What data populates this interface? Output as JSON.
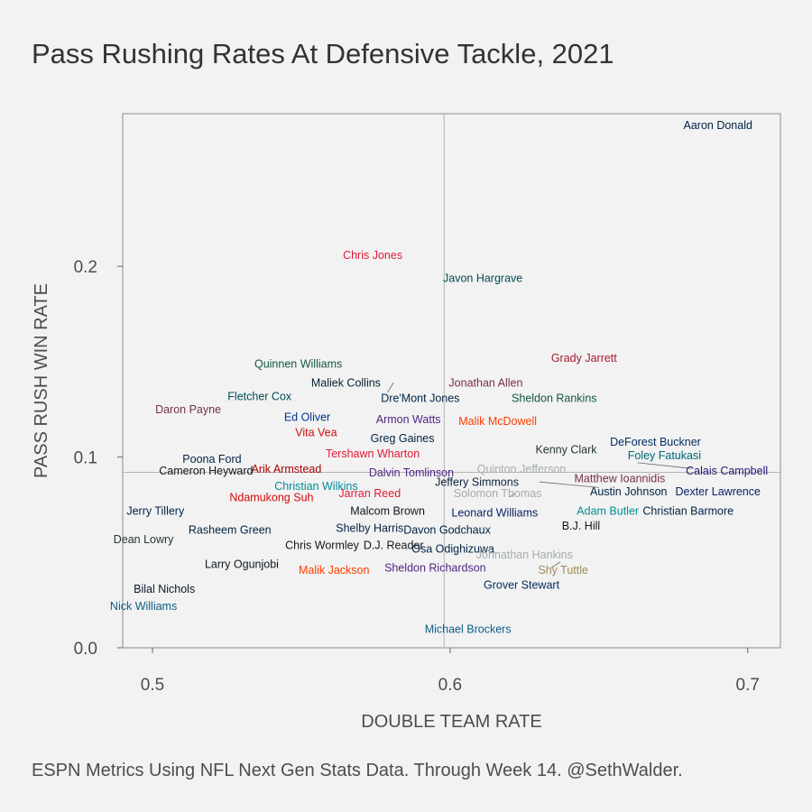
{
  "title": "Pass Rushing Rates At Defensive Tackle, 2021",
  "caption": "ESPN Metrics Using NFL Next Gen Stats Data. Through Week 14. @SethWalder.",
  "chart_data": {
    "type": "scatter",
    "title": "Pass Rushing Rates At Defensive Tackle, 2021",
    "xlabel": "DOUBLE TEAM RATE",
    "ylabel": "PASS RUSH WIN RATE",
    "xlim": [
      0.49,
      0.711
    ],
    "ylim": [
      0.0,
      0.28
    ],
    "xticks": [
      0.5,
      0.6,
      0.7
    ],
    "yticks": [
      0.0,
      0.1,
      0.2
    ],
    "xtick_labels": [
      "0.5",
      "0.6",
      "0.7"
    ],
    "ytick_labels": [
      "0.0",
      "0.1",
      "0.2"
    ],
    "reference_lines": {
      "x": 0.598,
      "y": 0.092
    },
    "grid": false,
    "points": [
      {
        "label": "Aaron Donald",
        "x": 0.69,
        "y": 0.274,
        "color": "#002244"
      },
      {
        "label": "Chris Jones",
        "x": 0.574,
        "y": 0.206,
        "color": "#e31837"
      },
      {
        "label": "Javon Hargrave",
        "x": 0.611,
        "y": 0.194,
        "color": "#004c54"
      },
      {
        "label": "Grady Jarrett",
        "x": 0.645,
        "y": 0.152,
        "color": "#a71930"
      },
      {
        "label": "Quinnen Williams",
        "x": 0.549,
        "y": 0.149,
        "color": "#125740"
      },
      {
        "label": "Maliek Collins",
        "x": 0.565,
        "y": 0.139,
        "color": "#03202f"
      },
      {
        "label": "Jonathan Allen",
        "x": 0.612,
        "y": 0.139,
        "color": "#773141"
      },
      {
        "label": "Fletcher Cox",
        "x": 0.536,
        "y": 0.132,
        "color": "#004c54"
      },
      {
        "label": "Dre'Mont Jones",
        "x": 0.59,
        "y": 0.131,
        "color": "#002244"
      },
      {
        "label": "Sheldon Rankins",
        "x": 0.635,
        "y": 0.131,
        "color": "#125740"
      },
      {
        "label": "Daron Payne",
        "x": 0.512,
        "y": 0.125,
        "color": "#773141"
      },
      {
        "label": "Ed Oliver",
        "x": 0.552,
        "y": 0.121,
        "color": "#00338d"
      },
      {
        "label": "Armon Watts",
        "x": 0.586,
        "y": 0.12,
        "color": "#4f2683"
      },
      {
        "label": "Malik McDowell",
        "x": 0.616,
        "y": 0.119,
        "color": "#ff3c00"
      },
      {
        "label": "Vita Vea",
        "x": 0.555,
        "y": 0.113,
        "color": "#d50a0a"
      },
      {
        "label": "Greg Gaines",
        "x": 0.584,
        "y": 0.11,
        "color": "#002244"
      },
      {
        "label": "DeForest Buckner",
        "x": 0.669,
        "y": 0.108,
        "color": "#002c5f"
      },
      {
        "label": "Kenny Clark",
        "x": 0.639,
        "y": 0.104,
        "color": "#203731"
      },
      {
        "label": "Tershawn Wharton",
        "x": 0.574,
        "y": 0.102,
        "color": "#e31837"
      },
      {
        "label": "Foley Fatukasi",
        "x": 0.672,
        "y": 0.101,
        "color": "#006778"
      },
      {
        "label": "Poona Ford",
        "x": 0.52,
        "y": 0.099,
        "color": "#002244"
      },
      {
        "label": "Arik Armstead",
        "x": 0.545,
        "y": 0.094,
        "color": "#aa0000"
      },
      {
        "label": "Quinton Jefferson",
        "x": 0.624,
        "y": 0.094,
        "color": "#a5acaf"
      },
      {
        "label": "Calais Campbell",
        "x": 0.693,
        "y": 0.093,
        "color": "#241773"
      },
      {
        "label": "Cameron Heyward",
        "x": 0.518,
        "y": 0.093,
        "color": "#101820"
      },
      {
        "label": "Dalvin Tomlinson",
        "x": 0.587,
        "y": 0.092,
        "color": "#4f2683"
      },
      {
        "label": "Matthew Ioannidis",
        "x": 0.657,
        "y": 0.089,
        "color": "#773141"
      },
      {
        "label": "Jeffery Simmons",
        "x": 0.609,
        "y": 0.087,
        "color": "#0c2340"
      },
      {
        "label": "Christian Wilkins",
        "x": 0.555,
        "y": 0.085,
        "color": "#008e97"
      },
      {
        "label": "Dexter Lawrence",
        "x": 0.69,
        "y": 0.082,
        "color": "#0b2265"
      },
      {
        "label": "Austin Johnson",
        "x": 0.66,
        "y": 0.082,
        "color": "#002244"
      },
      {
        "label": "Solomon Thomas",
        "x": 0.616,
        "y": 0.081,
        "color": "#a5acaf"
      },
      {
        "label": "Jarran Reed",
        "x": 0.573,
        "y": 0.081,
        "color": "#e31837"
      },
      {
        "label": "Ndamukong Suh",
        "x": 0.54,
        "y": 0.079,
        "color": "#d50a0a"
      },
      {
        "label": "Jerry Tillery",
        "x": 0.501,
        "y": 0.072,
        "color": "#002244"
      },
      {
        "label": "Adam Butler",
        "x": 0.653,
        "y": 0.072,
        "color": "#008e97"
      },
      {
        "label": "Christian Barmore",
        "x": 0.68,
        "y": 0.072,
        "color": "#002244"
      },
      {
        "label": "Malcom Brown",
        "x": 0.579,
        "y": 0.072,
        "color": "#101820"
      },
      {
        "label": "Leonard Williams",
        "x": 0.615,
        "y": 0.071,
        "color": "#0b2265"
      },
      {
        "label": "B.J. Hill",
        "x": 0.644,
        "y": 0.064,
        "color": "#101820"
      },
      {
        "label": "Shelby Harris",
        "x": 0.573,
        "y": 0.063,
        "color": "#002244"
      },
      {
        "label": "Davon Godchaux",
        "x": 0.599,
        "y": 0.062,
        "color": "#002244"
      },
      {
        "label": "Rasheem Green",
        "x": 0.526,
        "y": 0.062,
        "color": "#002244"
      },
      {
        "label": "Dean Lowry",
        "x": 0.497,
        "y": 0.057,
        "color": "#203731"
      },
      {
        "label": "Chris Wormley",
        "x": 0.557,
        "y": 0.054,
        "color": "#101820"
      },
      {
        "label": "D.J. Reader",
        "x": 0.581,
        "y": 0.054,
        "color": "#101820"
      },
      {
        "label": "Osa Odighizuwa",
        "x": 0.601,
        "y": 0.052,
        "color": "#002244"
      },
      {
        "label": "Johnathan Hankins",
        "x": 0.625,
        "y": 0.049,
        "color": "#a5acaf"
      },
      {
        "label": "Larry Ogunjobi",
        "x": 0.53,
        "y": 0.044,
        "color": "#101820"
      },
      {
        "label": "Malik Jackson",
        "x": 0.561,
        "y": 0.041,
        "color": "#ff3c00"
      },
      {
        "label": "Sheldon Richardson",
        "x": 0.595,
        "y": 0.042,
        "color": "#4f2683"
      },
      {
        "label": "Shy Tuttle",
        "x": 0.638,
        "y": 0.041,
        "color": "#a08a58"
      },
      {
        "label": "Grover Stewart",
        "x": 0.624,
        "y": 0.033,
        "color": "#002c5f"
      },
      {
        "label": "Bilal Nichols",
        "x": 0.504,
        "y": 0.031,
        "color": "#0b162a"
      },
      {
        "label": "Nick Williams",
        "x": 0.497,
        "y": 0.022,
        "color": "#0b5e86"
      },
      {
        "label": "Michael Brockers",
        "x": 0.606,
        "y": 0.01,
        "color": "#0b5e86"
      }
    ]
  }
}
